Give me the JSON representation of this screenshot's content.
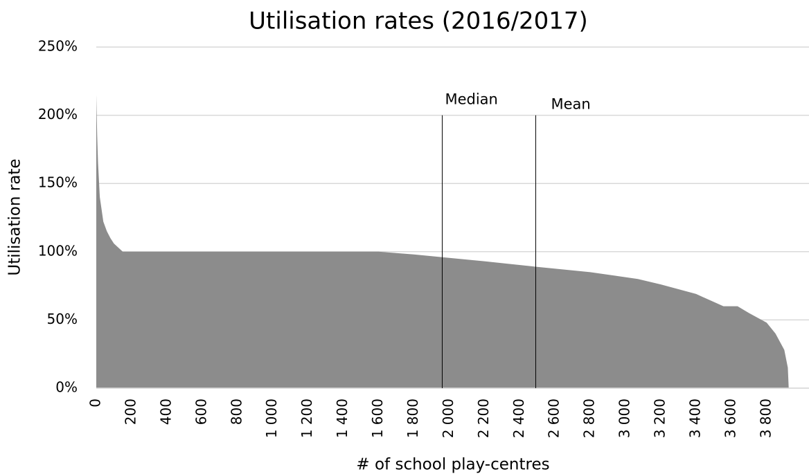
{
  "chart_data": {
    "type": "area",
    "title": "Utilisation rates (2016/2017)",
    "xlabel": "# of school play-centres",
    "ylabel": "Utilisation rate",
    "color": "#8c8c8c",
    "grid": true,
    "x": [
      0,
      5,
      10,
      20,
      40,
      60,
      80,
      100,
      150,
      1600,
      1800,
      1960,
      2200,
      2490,
      2800,
      3070,
      3200,
      3400,
      3555,
      3635,
      3700,
      3800,
      3850,
      3900,
      3920,
      3925
    ],
    "values": [
      215,
      185,
      165,
      140,
      122,
      115,
      110,
      106,
      100,
      100,
      98,
      96,
      93,
      89,
      85,
      80,
      76,
      69,
      60,
      60,
      55,
      48,
      40,
      28,
      15,
      0
    ],
    "xlim": [
      0,
      4040
    ],
    "ylim": [
      0,
      250
    ],
    "xticks": [
      0,
      200,
      400,
      600,
      800,
      {
        "value": 1000,
        "label": "1 000"
      },
      {
        "value": 1200,
        "label": "1 200"
      },
      {
        "value": 1400,
        "label": "1 400"
      },
      {
        "value": 1600,
        "label": "1 600"
      },
      {
        "value": 1800,
        "label": "1 800"
      },
      {
        "value": 2000,
        "label": "2 000"
      },
      {
        "value": 2200,
        "label": "2 200"
      },
      {
        "value": 2400,
        "label": "2 400"
      },
      {
        "value": 2600,
        "label": "2 600"
      },
      {
        "value": 2800,
        "label": "2 800"
      },
      {
        "value": 3000,
        "label": "3 000"
      },
      {
        "value": 3200,
        "label": "3 200"
      },
      {
        "value": 3400,
        "label": "3 400"
      },
      {
        "value": 3600,
        "label": "3 600"
      },
      {
        "value": 3800,
        "label": "3 800"
      }
    ],
    "yticks": [
      {
        "value": 0,
        "label": "0%"
      },
      {
        "value": 50,
        "label": "50%"
      },
      {
        "value": 100,
        "label": "100%"
      },
      {
        "value": 150,
        "label": "150%"
      },
      {
        "value": 200,
        "label": "200%"
      },
      {
        "value": 250,
        "label": "250%"
      }
    ],
    "annotations": [
      {
        "text": "Median",
        "x": 1961,
        "y": 200
      },
      {
        "text": "Mean",
        "x": 2491,
        "y": 200
      }
    ]
  }
}
